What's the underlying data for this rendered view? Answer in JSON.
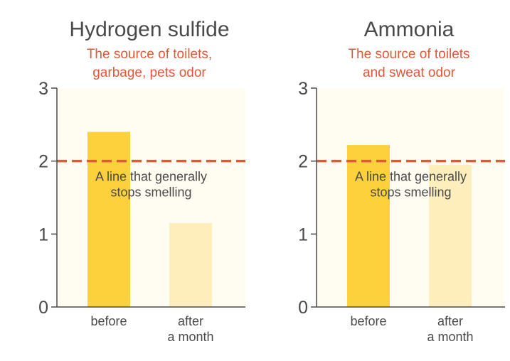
{
  "chart_data": [
    {
      "type": "bar",
      "title": "Hydrogen sulfide",
      "subtitle_lines": [
        "The source of toilets,",
        "garbage, pets odor"
      ],
      "categories": [
        [
          "before"
        ],
        [
          "after",
          "a month"
        ]
      ],
      "values": [
        2.4,
        1.15
      ],
      "ylim": [
        0,
        3
      ],
      "yticks": [
        "0",
        "1",
        "2",
        "3"
      ],
      "threshold": {
        "value": 2,
        "label_lines": [
          "A line that generally",
          "stops smelling"
        ]
      }
    },
    {
      "type": "bar",
      "title": "Ammonia",
      "subtitle_lines": [
        "The source of toilets",
        "and sweat odor"
      ],
      "categories": [
        [
          "before"
        ],
        [
          "after",
          "a month"
        ]
      ],
      "values": [
        2.22,
        1.95
      ],
      "ylim": [
        0,
        3
      ],
      "yticks": [
        "0",
        "1",
        "2",
        "3"
      ],
      "threshold": {
        "value": 2,
        "label_lines": [
          "A line that generally",
          "stops smelling"
        ]
      }
    }
  ],
  "colors": {
    "plot_background": "#fffdf2",
    "bar_before": "#fdd13b",
    "bar_after": "#fdeebb",
    "threshold_line": "#e0573a",
    "subtitle_text": "#e0573a",
    "axis": "#4a4a4a",
    "text": "#4a4a4a"
  }
}
